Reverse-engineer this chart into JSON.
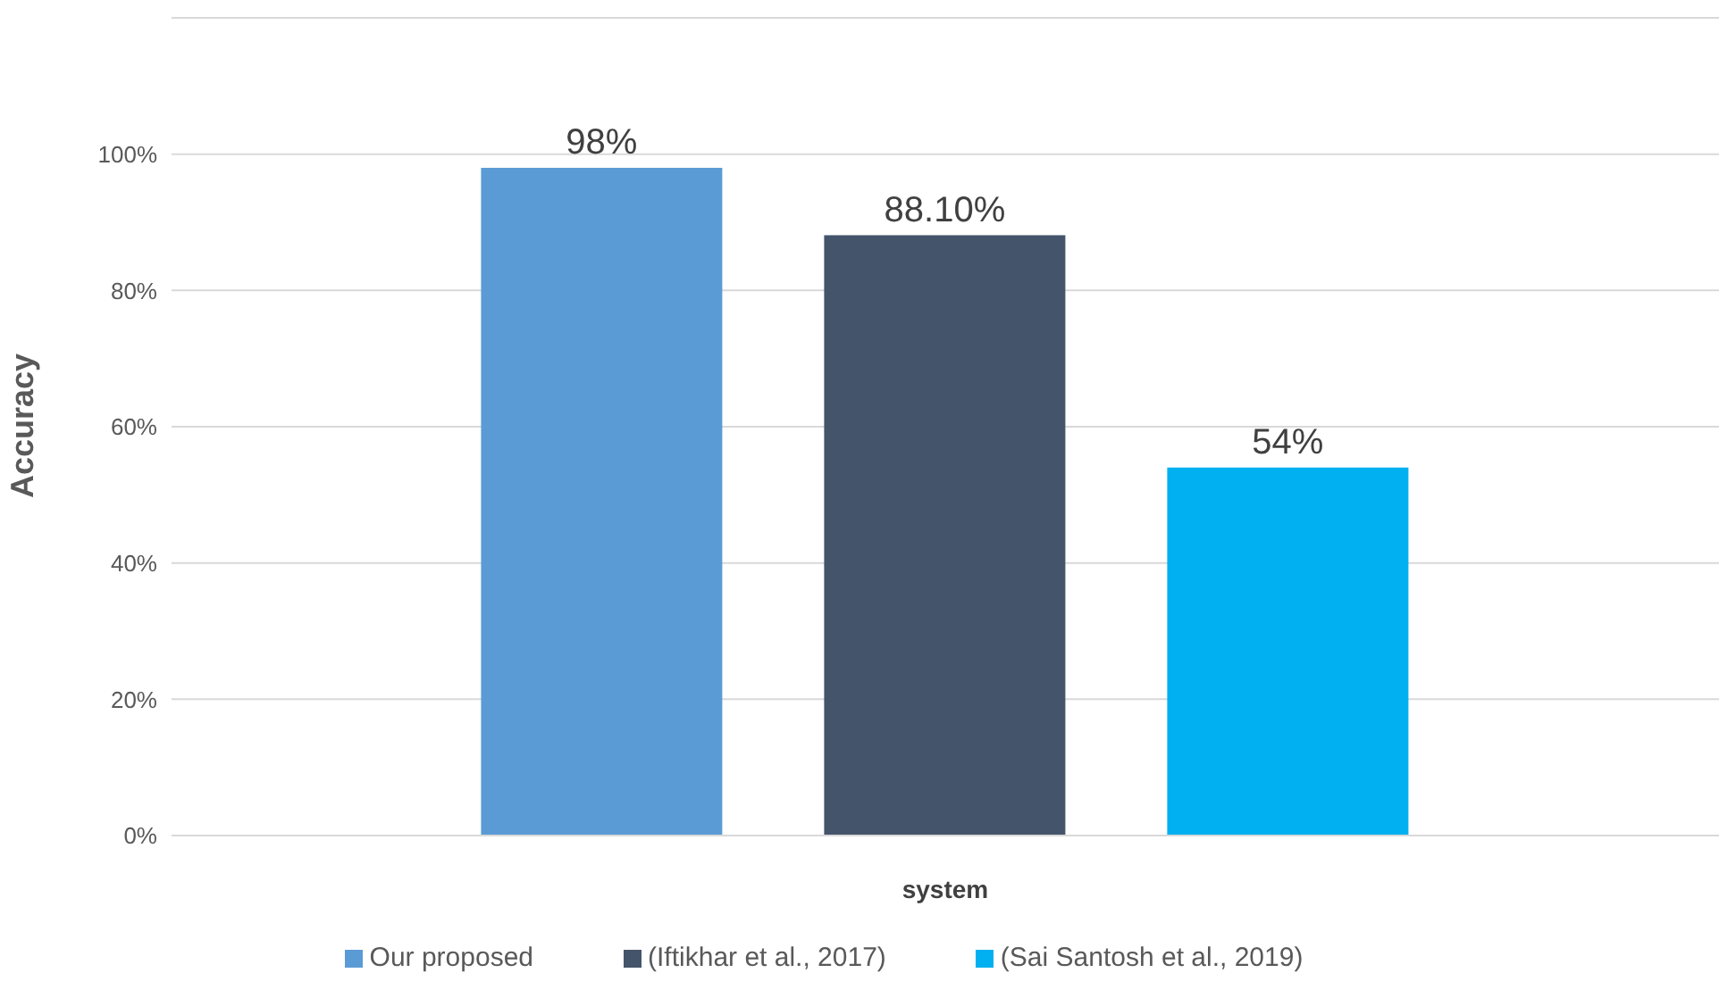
{
  "chart_data": {
    "type": "bar",
    "xlabel": "system",
    "ylabel": "Accuracy",
    "categories": [
      null
    ],
    "series": [
      {
        "name": "Our proposed",
        "color": "#5b9bd5",
        "values": [
          98
        ],
        "value_labels": [
          "98%"
        ]
      },
      {
        "name": "(Iftikhar et al., 2017)",
        "color": "#44546a",
        "values": [
          88.1
        ],
        "value_labels": [
          "88.10%"
        ]
      },
      {
        "name": "(Sai Santosh et al., 2019)",
        "color": "#00b0f0",
        "values": [
          54
        ],
        "value_labels": [
          "54%"
        ]
      }
    ],
    "ylim": [
      0,
      120
    ],
    "yticks": [
      {
        "value": 0,
        "label": "0%"
      },
      {
        "value": 20,
        "label": "20%"
      },
      {
        "value": 40,
        "label": "40%"
      },
      {
        "value": 60,
        "label": "60%"
      },
      {
        "value": 80,
        "label": "80%"
      },
      {
        "value": 100,
        "label": "100%"
      }
    ],
    "grid": "y",
    "legend": "bottom"
  }
}
